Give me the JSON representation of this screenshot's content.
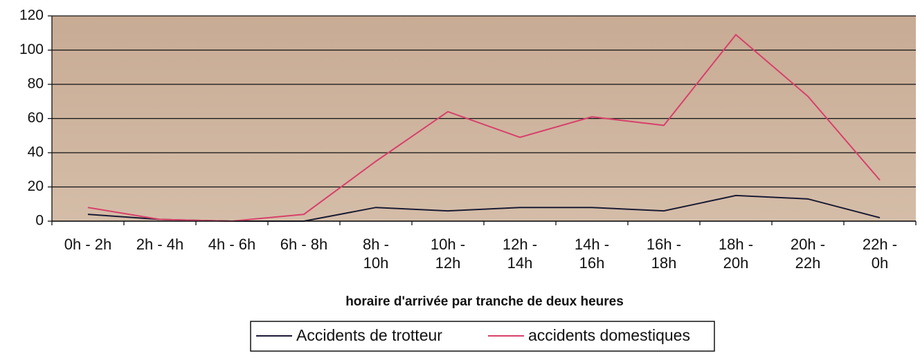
{
  "chart_data": {
    "type": "line",
    "xlabel": "horaire d'arrivée par tranche de deux heures",
    "categories": [
      "0h - 2h",
      "2h - 4h",
      "4h - 6h",
      "6h - 8h",
      "8h - 10h",
      "10h - 12h",
      "12h - 14h",
      "14h - 16h",
      "16h - 18h",
      "18h - 20h",
      "20h - 22h",
      "22h - 0h"
    ],
    "series": [
      {
        "name": "Accidents de trotteur",
        "color": "#1a1a33",
        "values": [
          4,
          1,
          0,
          0,
          8,
          6,
          8,
          8,
          6,
          15,
          13,
          2
        ]
      },
      {
        "name": "accidents domestiques",
        "color": "#d8406a",
        "values": [
          8,
          1,
          0,
          4,
          35,
          64,
          49,
          61,
          56,
          109,
          73,
          24
        ]
      }
    ],
    "ylim": [
      0,
      120
    ],
    "yticks": [
      0,
      20,
      40,
      60,
      80,
      100,
      120
    ],
    "grid": true,
    "legend": "bottom"
  }
}
